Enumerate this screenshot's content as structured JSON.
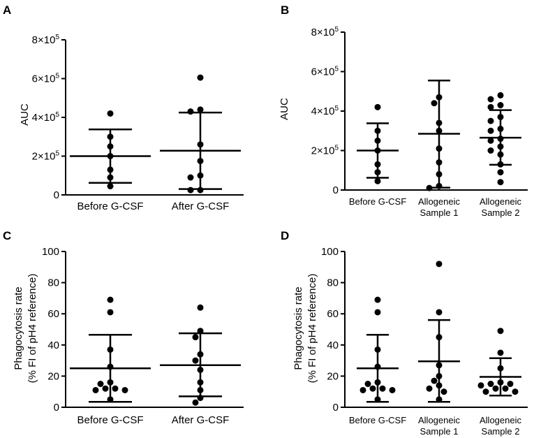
{
  "chart_data": [
    {
      "panel": "A",
      "type": "scatter",
      "ylabel": [
        "AUC"
      ],
      "ylim": [
        0,
        800000
      ],
      "yticks": [
        {
          "value": 0,
          "label": "0"
        },
        {
          "value": 200000,
          "label": "2×10",
          "exp": "5"
        },
        {
          "value": 400000,
          "label": "4×10",
          "exp": "5"
        },
        {
          "value": 600000,
          "label": "6×10",
          "exp": "5"
        },
        {
          "value": 800000,
          "label": "8×10",
          "exp": "5"
        }
      ],
      "categories": [
        [
          "Before G-CSF"
        ],
        [
          "After G-CSF"
        ]
      ],
      "groups": [
        {
          "name": "Before G-CSF",
          "mean": 200000,
          "sd_low": 62000,
          "sd_high": 338000,
          "points": [
            420000,
            300000,
            250000,
            200000,
            130000,
            90000,
            45000
          ]
        },
        {
          "name": "After G-CSF",
          "mean": 228000,
          "sd_low": 30000,
          "sd_high": 425000,
          "points": [
            605000,
            440000,
            430000,
            260000,
            175000,
            100000,
            90000,
            25000,
            25000
          ]
        }
      ]
    },
    {
      "panel": "B",
      "type": "scatter",
      "ylabel": [
        "AUC"
      ],
      "ylim": [
        0,
        800000
      ],
      "yticks": [
        {
          "value": 0,
          "label": "0"
        },
        {
          "value": 200000,
          "label": "2×10",
          "exp": "5"
        },
        {
          "value": 400000,
          "label": "4×10",
          "exp": "5"
        },
        {
          "value": 600000,
          "label": "6×10",
          "exp": "5"
        },
        {
          "value": 800000,
          "label": "8×10",
          "exp": "5"
        }
      ],
      "categories": [
        [
          "Before G-CSF"
        ],
        [
          "Allogeneic",
          "Sample 1"
        ],
        [
          "Allogeneic",
          "Sample 2"
        ]
      ],
      "groups": [
        {
          "name": "Before G-CSF",
          "mean": 200000,
          "sd_low": 62000,
          "sd_high": 338000,
          "points": [
            420000,
            300000,
            250000,
            200000,
            130000,
            90000,
            45000
          ]
        },
        {
          "name": "Allogeneic Sample 1",
          "mean": 285000,
          "sd_low": 12000,
          "sd_high": 555000,
          "points": [
            470000,
            440000,
            340000,
            300000,
            210000,
            140000,
            80000,
            20000,
            10000
          ]
        },
        {
          "name": "Allogeneic Sample 2",
          "mean": 265000,
          "sd_low": 128000,
          "sd_high": 405000,
          "points": [
            480000,
            460000,
            430000,
            420000,
            370000,
            350000,
            310000,
            300000,
            260000,
            250000,
            220000,
            200000,
            180000,
            130000,
            90000,
            40000
          ]
        }
      ]
    },
    {
      "panel": "C",
      "type": "scatter",
      "ylabel": [
        "Phagocytosis rate",
        "(% FI of pH4 reference)"
      ],
      "ylim": [
        0,
        100
      ],
      "yticks": [
        {
          "value": 0,
          "label": "0"
        },
        {
          "value": 20,
          "label": "20"
        },
        {
          "value": 40,
          "label": "40"
        },
        {
          "value": 60,
          "label": "60"
        },
        {
          "value": 80,
          "label": "80"
        },
        {
          "value": 100,
          "label": "100"
        }
      ],
      "categories": [
        [
          "Before G-CSF"
        ],
        [
          "After G-CSF"
        ]
      ],
      "groups": [
        {
          "name": "Before G-CSF",
          "mean": 25,
          "sd_low": 3.5,
          "sd_high": 46.5,
          "points": [
            69,
            61,
            37,
            26,
            16,
            15,
            12,
            12,
            11,
            11,
            5
          ]
        },
        {
          "name": "After G-CSF",
          "mean": 27,
          "sd_low": 7,
          "sd_high": 47.5,
          "points": [
            64,
            49,
            45,
            34,
            30,
            24,
            16,
            11,
            6,
            3
          ]
        }
      ]
    },
    {
      "panel": "D",
      "type": "scatter",
      "ylabel": [
        "Phagocytosis rate",
        "(% FI of pH4 reference)"
      ],
      "ylim": [
        0,
        100
      ],
      "yticks": [
        {
          "value": 0,
          "label": "0"
        },
        {
          "value": 20,
          "label": "20"
        },
        {
          "value": 40,
          "label": "40"
        },
        {
          "value": 60,
          "label": "60"
        },
        {
          "value": 80,
          "label": "80"
        },
        {
          "value": 100,
          "label": "100"
        }
      ],
      "categories": [
        [
          "Before G-CSF"
        ],
        [
          "Allogeneic",
          "Sample 1"
        ],
        [
          "Allogeneic",
          "Sample 2"
        ]
      ],
      "groups": [
        {
          "name": "Before G-CSF",
          "mean": 25,
          "sd_low": 3.5,
          "sd_high": 46.5,
          "points": [
            69,
            61,
            37,
            26,
            16,
            15,
            12,
            12,
            11,
            11,
            5
          ]
        },
        {
          "name": "Allogeneic Sample 1",
          "mean": 29.5,
          "sd_low": 3.5,
          "sd_high": 56,
          "points": [
            92,
            61,
            45,
            27,
            20,
            17,
            14,
            12,
            10,
            5
          ]
        },
        {
          "name": "Allogeneic Sample 2",
          "mean": 19.5,
          "sd_low": 7.5,
          "sd_high": 31.5,
          "points": [
            49,
            35,
            25,
            16,
            15,
            15,
            14,
            12,
            12,
            10,
            10
          ]
        }
      ]
    }
  ]
}
